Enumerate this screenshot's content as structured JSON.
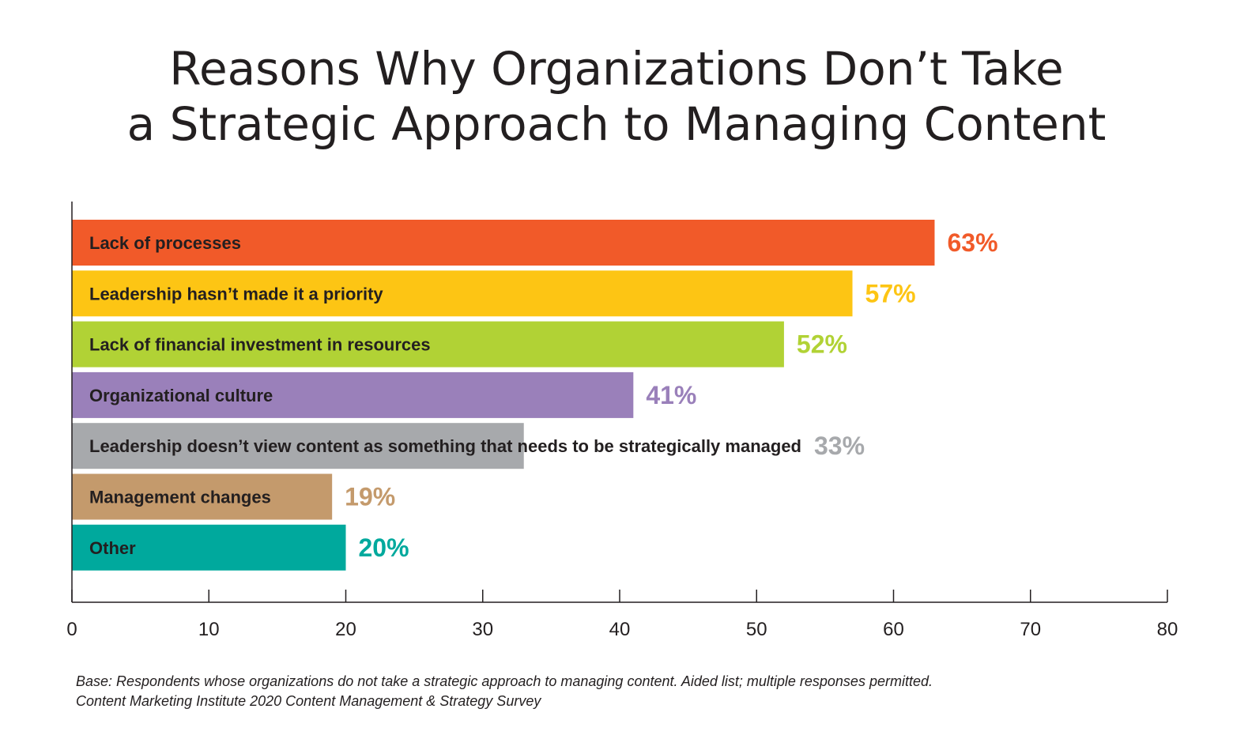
{
  "title_line1": "Reasons Why Organizations Don’t Take",
  "title_line2": "a Strategic Approach to Managing Content",
  "footnote_line1": "Base: Respondents whose organizations do not take a strategic approach to managing content. Aided list; multiple responses permitted.",
  "footnote_line2": "Content Marketing Institute 2020 Content Management & Strategy Survey",
  "chart_data": {
    "type": "bar",
    "orientation": "horizontal",
    "categories": [
      "Lack of processes",
      "Leadership hasn’t made it a priority",
      "Lack of financial investment in resources",
      "Organizational culture",
      "Leadership doesn’t view content as something that needs to be strategically managed",
      "Management changes",
      "Other"
    ],
    "values": [
      63,
      57,
      52,
      41,
      33,
      19,
      20
    ],
    "value_labels": [
      "63%",
      "57%",
      "52%",
      "41%",
      "33%",
      "19%",
      "20%"
    ],
    "colors": [
      "#f15a29",
      "#fdc514",
      "#b1d235",
      "#9a80ba",
      "#a7a9ac",
      "#c49a6c",
      "#00a99d"
    ],
    "xlim": [
      0,
      80
    ],
    "ticks": [
      0,
      10,
      20,
      30,
      40,
      50,
      60,
      70,
      80
    ],
    "grid": false,
    "legend": "none"
  }
}
